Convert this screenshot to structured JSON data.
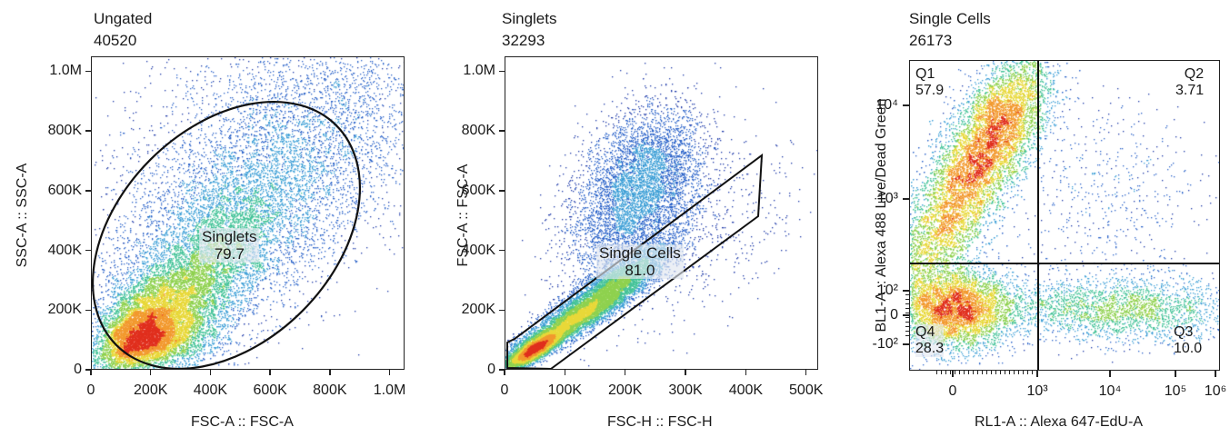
{
  "chart_data": [
    {
      "type": "scatter",
      "title": "Ungated",
      "subtitle": "40520",
      "xlabel": "FSC-A :: FSC-A",
      "ylabel": "SSC-A :: SSC-A",
      "xlim": [
        0,
        1050000
      ],
      "ylim": [
        0,
        1050000
      ],
      "x_ticks": [
        "0",
        "200K",
        "400K",
        "600K",
        "800K",
        "1.0M"
      ],
      "x_tick_values": [
        0,
        200000,
        400000,
        600000,
        800000,
        1000000
      ],
      "y_ticks": [
        "0",
        "200K",
        "400K",
        "600K",
        "800K",
        "1.0M"
      ],
      "y_tick_values": [
        0,
        200000,
        400000,
        600000,
        800000,
        1000000
      ],
      "gate": {
        "name": "Singlets",
        "value": "79.7",
        "shape": "ellipse"
      },
      "density": "pseudocolor"
    },
    {
      "type": "scatter",
      "title": "Singlets",
      "subtitle": "32293",
      "xlabel": "FSC-H :: FSC-H",
      "ylabel": "FSC-A :: FSC-A",
      "xlim": [
        0,
        520000
      ],
      "ylim": [
        0,
        1050000
      ],
      "x_ticks": [
        "0",
        "100K",
        "200K",
        "300K",
        "400K",
        "500K"
      ],
      "x_tick_values": [
        0,
        100000,
        200000,
        300000,
        400000,
        500000
      ],
      "y_ticks": [
        "0",
        "200K",
        "400K",
        "600K",
        "800K",
        "1.0M"
      ],
      "y_tick_values": [
        0,
        200000,
        400000,
        600000,
        800000,
        1000000
      ],
      "gate": {
        "name": "Single Cells",
        "value": "81.0",
        "shape": "polygon"
      },
      "density": "pseudocolor"
    },
    {
      "type": "scatter",
      "title": "Single Cells",
      "subtitle": "26173",
      "xlabel": "RL1-A :: Alexa 647-EdU-A",
      "ylabel": "BL1-A :: Alexa 488 Live/Dead Green",
      "scale": "biexponential",
      "x_ticks": [
        "0",
        "10³",
        "10⁴",
        "10⁵",
        "10⁶"
      ],
      "y_ticks": [
        "-10²",
        "0",
        "10²",
        "10³",
        "10⁴"
      ],
      "quadrants": [
        {
          "name": "Q1",
          "value": "57.9"
        },
        {
          "name": "Q2",
          "value": "3.71"
        },
        {
          "name": "Q3",
          "value": "10.0"
        },
        {
          "name": "Q4",
          "value": "28.3"
        }
      ],
      "density": "pseudocolor"
    }
  ]
}
